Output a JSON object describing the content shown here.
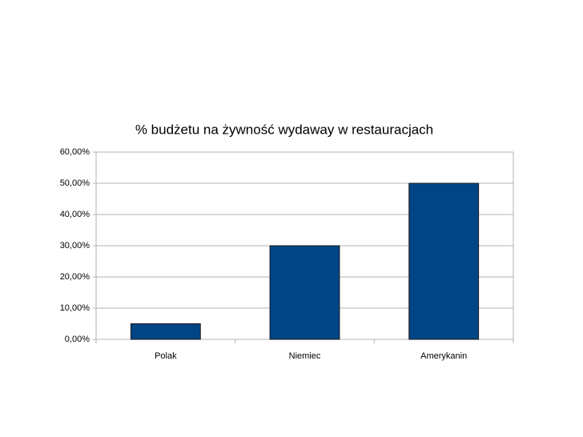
{
  "chart_data": {
    "type": "bar",
    "title": "% budżetu na żywność wydaway w restauracjach",
    "categories": [
      "Polak",
      "Niemiec",
      "Amerykanin"
    ],
    "values": [
      5,
      30,
      50
    ],
    "color": "#004586",
    "ylim": [
      0,
      60
    ],
    "yticks": [
      {
        "value": 0,
        "label": "0,00%"
      },
      {
        "value": 10,
        "label": "10,00%"
      },
      {
        "value": 20,
        "label": "20,00%"
      },
      {
        "value": 30,
        "label": "30,00%"
      },
      {
        "value": 40,
        "label": "40,00%"
      },
      {
        "value": 50,
        "label": "50,00%"
      },
      {
        "value": 60,
        "label": "60,00%"
      }
    ],
    "grid": true
  }
}
